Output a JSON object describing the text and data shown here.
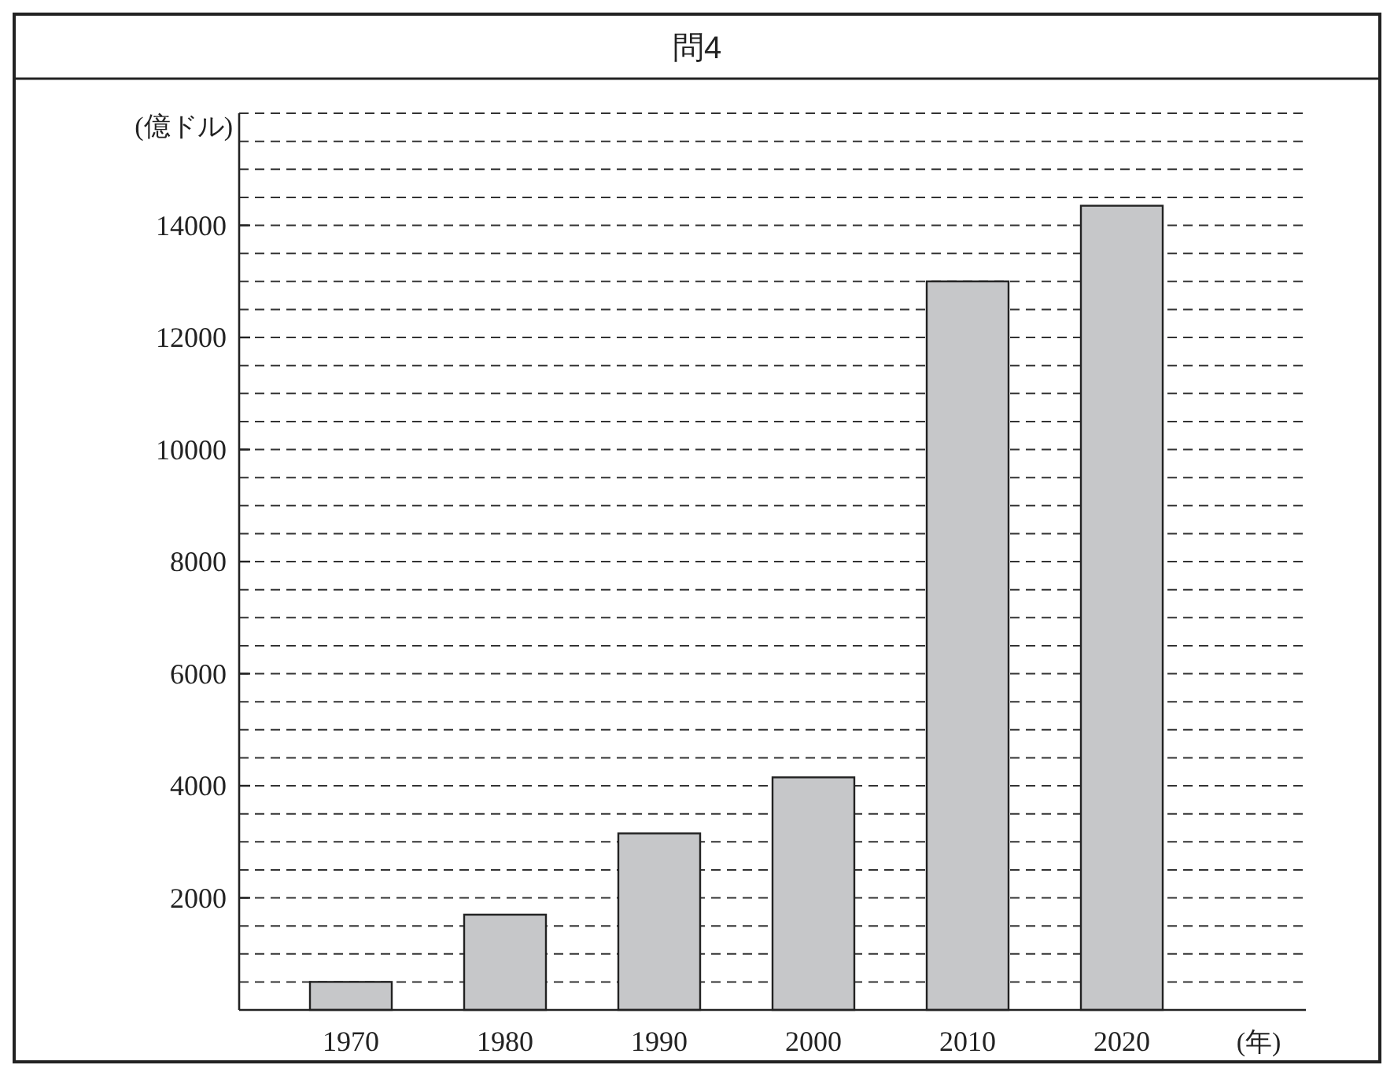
{
  "chart_data": {
    "type": "bar",
    "title": "問4",
    "ylabel": "(億ドル)",
    "xlabel": "(年)",
    "categories": [
      "1970",
      "1980",
      "1990",
      "2000",
      "2010",
      "2020"
    ],
    "values": [
      500,
      1700,
      3150,
      4150,
      13000,
      14350
    ],
    "color": "#c6c7c9",
    "ylim": [
      0,
      16000
    ],
    "yticks": [
      {
        "value": 500,
        "label": null
      },
      {
        "value": 1000,
        "label": null
      },
      {
        "value": 1500,
        "label": null
      },
      2000,
      {
        "value": 2500,
        "label": null
      },
      {
        "value": 3000,
        "label": null
      },
      {
        "value": 3500,
        "label": null
      },
      4000,
      {
        "value": 4500,
        "label": null
      },
      {
        "value": 5000,
        "label": null
      },
      {
        "value": 5500,
        "label": null
      },
      6000,
      {
        "value": 6500,
        "label": null
      },
      {
        "value": 7000,
        "label": null
      },
      {
        "value": 7500,
        "label": null
      },
      8000,
      {
        "value": 8500,
        "label": null
      },
      {
        "value": 9000,
        "label": null
      },
      {
        "value": 9500,
        "label": null
      },
      10000,
      {
        "value": 10500,
        "label": null
      },
      {
        "value": 11000,
        "label": null
      },
      {
        "value": 11500,
        "label": null
      },
      12000,
      {
        "value": 12500,
        "label": null
      },
      {
        "value": 13000,
        "label": null
      },
      {
        "value": 13500,
        "label": null
      },
      14000,
      {
        "value": 14500,
        "label": null
      },
      {
        "value": 15000,
        "label": null
      },
      {
        "value": 15500,
        "label": null
      },
      {
        "value": 16000,
        "label": null
      }
    ],
    "grid": "y"
  }
}
